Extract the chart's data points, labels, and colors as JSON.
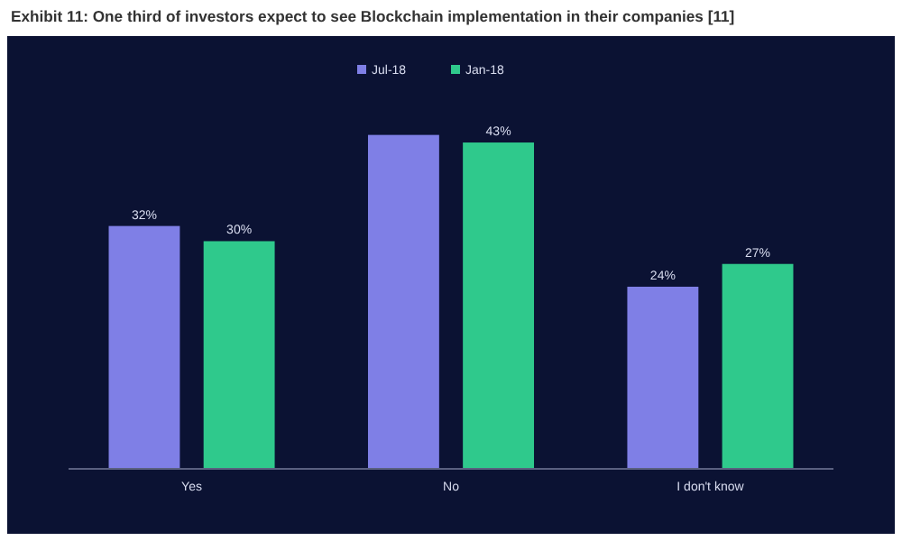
{
  "chart_data": {
    "type": "bar",
    "title": "Exhibit 11: One third of investors expect to see Blockchain implementation in their companies [11]",
    "categories": [
      "Yes",
      "No",
      "I don't know"
    ],
    "legend": "top",
    "series": [
      {
        "name": "Jul-18",
        "color": "#7f7fe6",
        "values": [
          32,
          44,
          24
        ],
        "value_labels": [
          "32%",
          null,
          "24%"
        ]
      },
      {
        "name": "Jan-18",
        "color": "#2fc98c",
        "values": [
          30,
          43,
          27
        ],
        "value_labels": [
          "30%",
          "43%",
          "27%"
        ]
      }
    ],
    "relative": false
  }
}
